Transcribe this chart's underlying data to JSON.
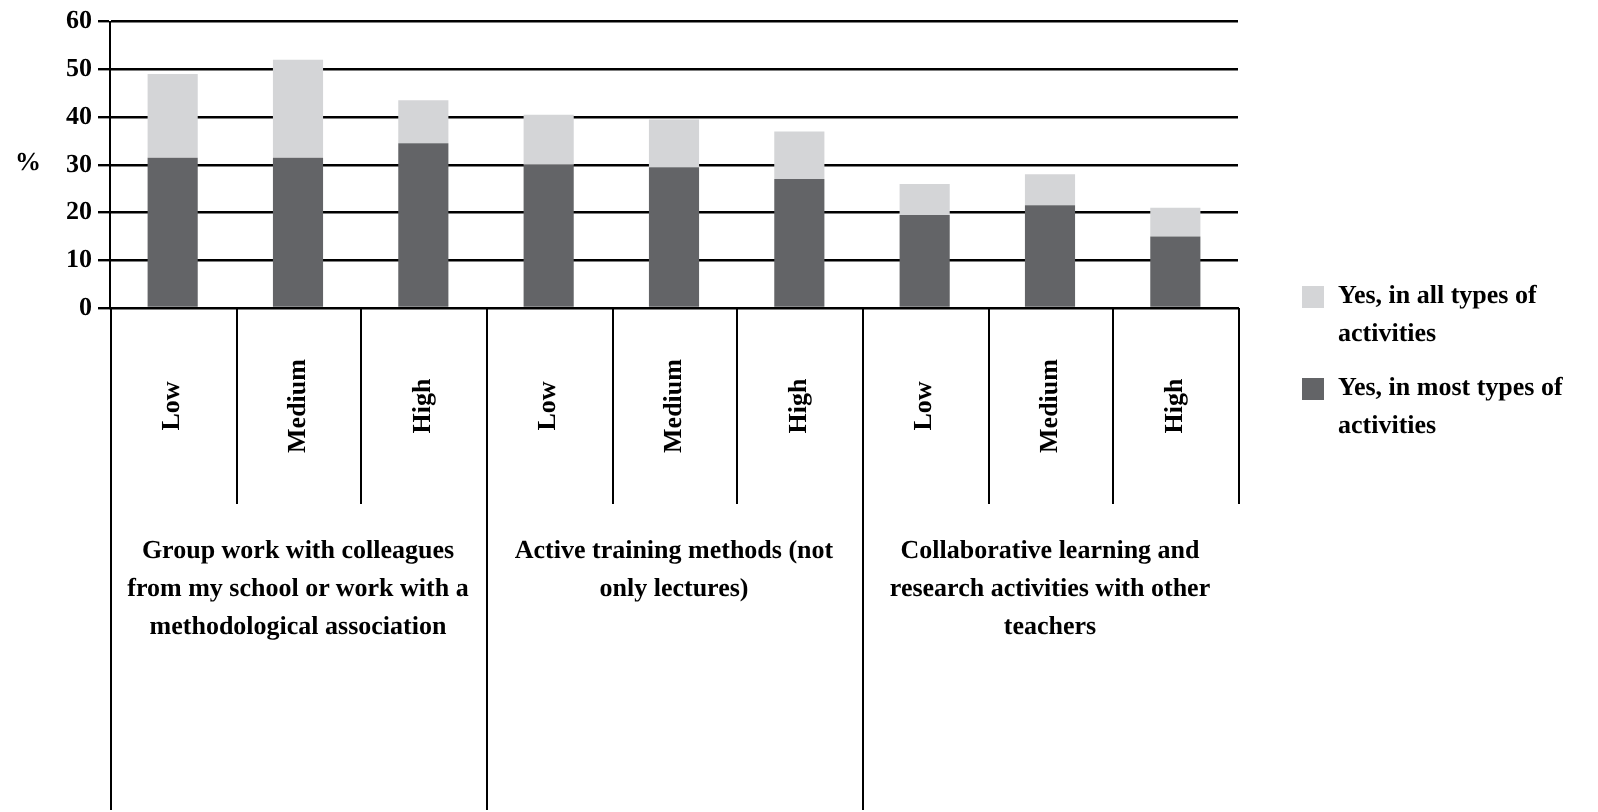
{
  "chart_data": {
    "type": "bar",
    "stacked": true,
    "ylabel": "%",
    "categories": [
      "Low",
      "Medium",
      "High",
      "Low",
      "Medium",
      "High",
      "Low",
      "Medium",
      "High"
    ],
    "annotations": [
      "Group work with colleagues from my school or work with a methodological association",
      "Active training methods (not only lectures)",
      "Collaborative learning and research activities with other teachers"
    ],
    "series": [
      {
        "name": "Yes, in most types of activities",
        "color": "#636467",
        "values": [
          31.5,
          31.5,
          34.5,
          30,
          29.5,
          27,
          19.5,
          21.5,
          15
        ]
      },
      {
        "name": "Yes, in all types of activities",
        "color": "#d4d5d7",
        "values": [
          17.5,
          20.5,
          9,
          10.5,
          10,
          10,
          6.5,
          6.5,
          6
        ]
      }
    ],
    "ylim": [
      0,
      60
    ],
    "yticks": [
      0,
      10,
      20,
      30,
      40,
      50,
      60
    ],
    "grid": "y",
    "legend": "right"
  }
}
